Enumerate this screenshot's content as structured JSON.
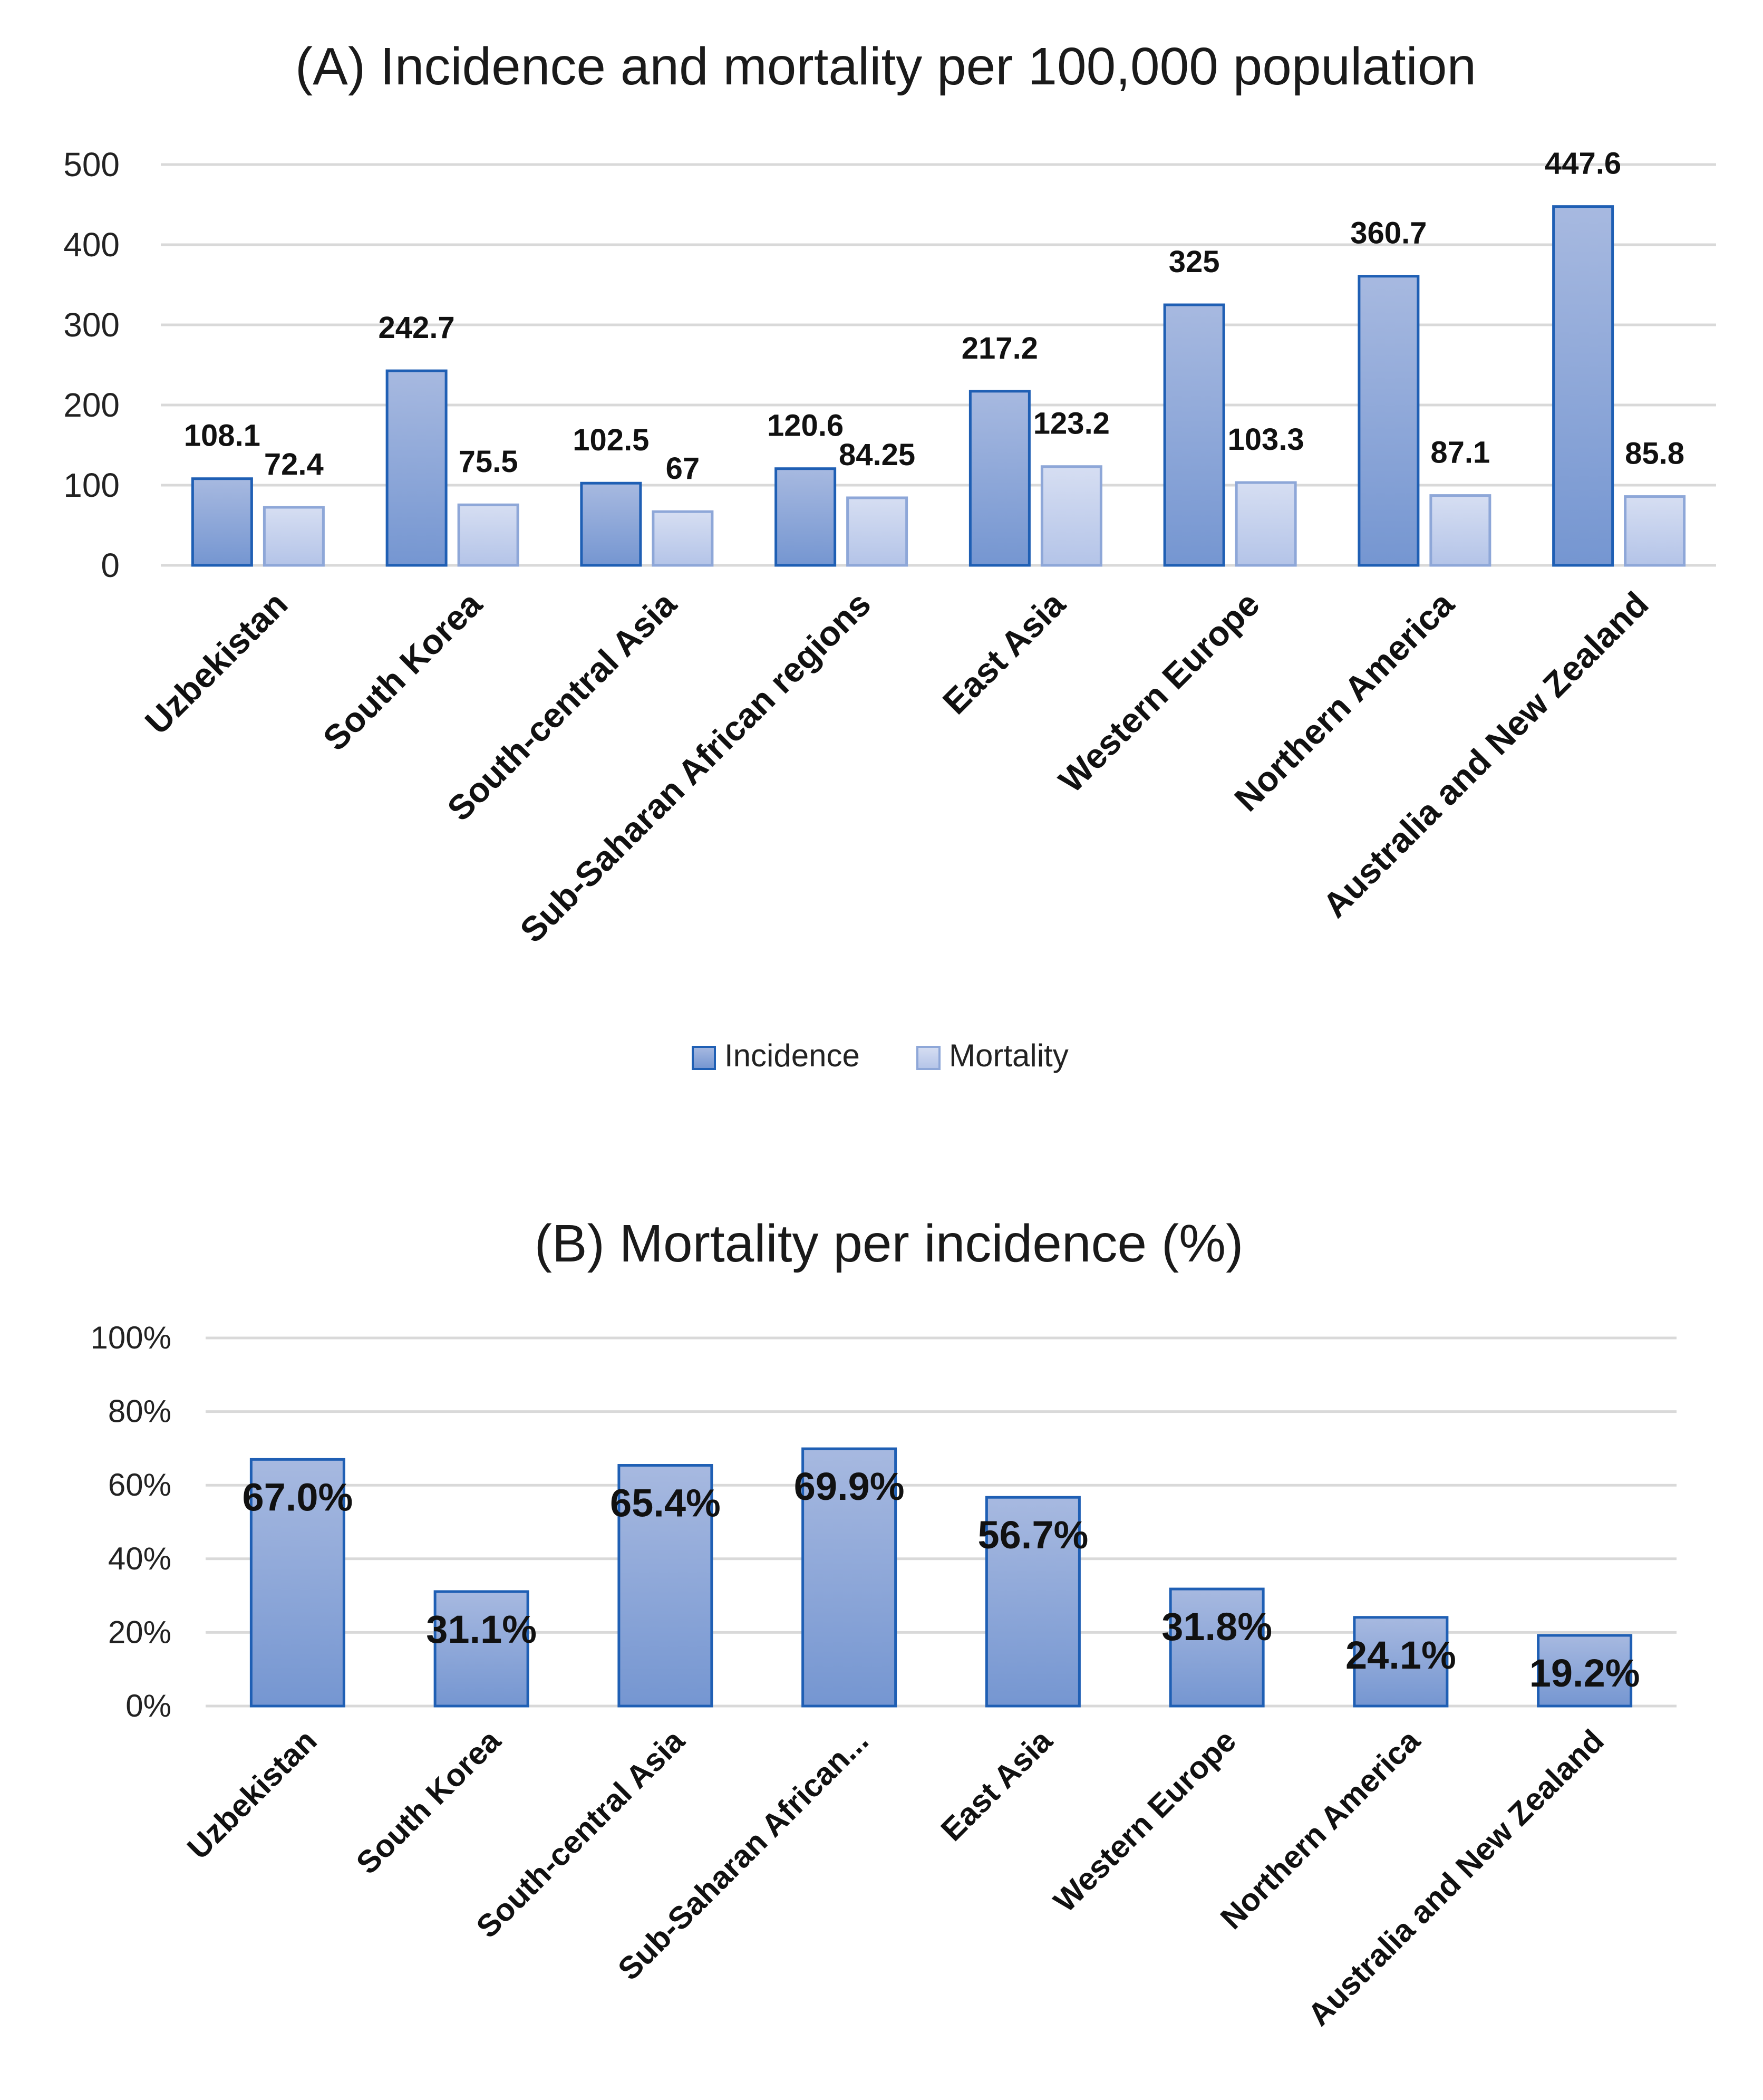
{
  "colors": {
    "incidence_fill_top": "#a7b9e0",
    "incidence_fill_bottom": "#7596d1",
    "incidence_stroke": "#1f5fb4",
    "mortality_fill_top": "#d6def2",
    "mortality_fill_bottom": "#b4c4e8",
    "mortality_stroke": "#8ea7d8",
    "grid": "#d9d9d9"
  },
  "chart_data": [
    {
      "type": "bar",
      "title": "(A) Incidence and mortality per 100,000 population",
      "categories": [
        "Uzbekistan",
        "South Korea",
        "South-central Asia",
        "Sub-Saharan African regions",
        "East Asia",
        "Western Europe",
        "Northern America",
        "Australia and New Zealand"
      ],
      "series": [
        {
          "name": "Incidence",
          "values": [
            108.1,
            242.7,
            102.5,
            120.6,
            217.2,
            325,
            360.7,
            447.6
          ],
          "labels": [
            "108.1",
            "242.7",
            "102.5",
            "120.6",
            "217.2",
            "325",
            "360.7",
            "447.6"
          ]
        },
        {
          "name": "Mortality",
          "values": [
            72.4,
            75.5,
            67,
            84.25,
            123.2,
            103.3,
            87.1,
            85.8
          ],
          "labels": [
            "72.4",
            "75.5",
            "67",
            "84.25",
            "123.2",
            "103.3",
            "87.1",
            "85.8"
          ]
        }
      ],
      "yticks": [
        "0",
        "100",
        "200",
        "300",
        "400",
        "500"
      ],
      "ylim": [
        0,
        500
      ],
      "grid": true,
      "legend": "bottom"
    },
    {
      "type": "bar",
      "title": "(B) Mortality per incidence (%)",
      "categories": [
        "Uzbekistan",
        "South Korea",
        "South-central Asia",
        "Sub-Saharan African...",
        "East Asia",
        "Western Europe",
        "Northern America",
        "Australia and New Zealand"
      ],
      "values": [
        67.0,
        31.1,
        65.4,
        69.9,
        56.7,
        31.8,
        24.1,
        19.2
      ],
      "labels": [
        "67.0%",
        "31.1%",
        "65.4%",
        "69.9%",
        "56.7%",
        "31.8%",
        "24.1%",
        "19.2%"
      ],
      "yticks": [
        "0%",
        "20%",
        "40%",
        "60%",
        "80%",
        "100%"
      ],
      "ylim": [
        0,
        100
      ],
      "grid": true,
      "legend": "none"
    }
  ]
}
